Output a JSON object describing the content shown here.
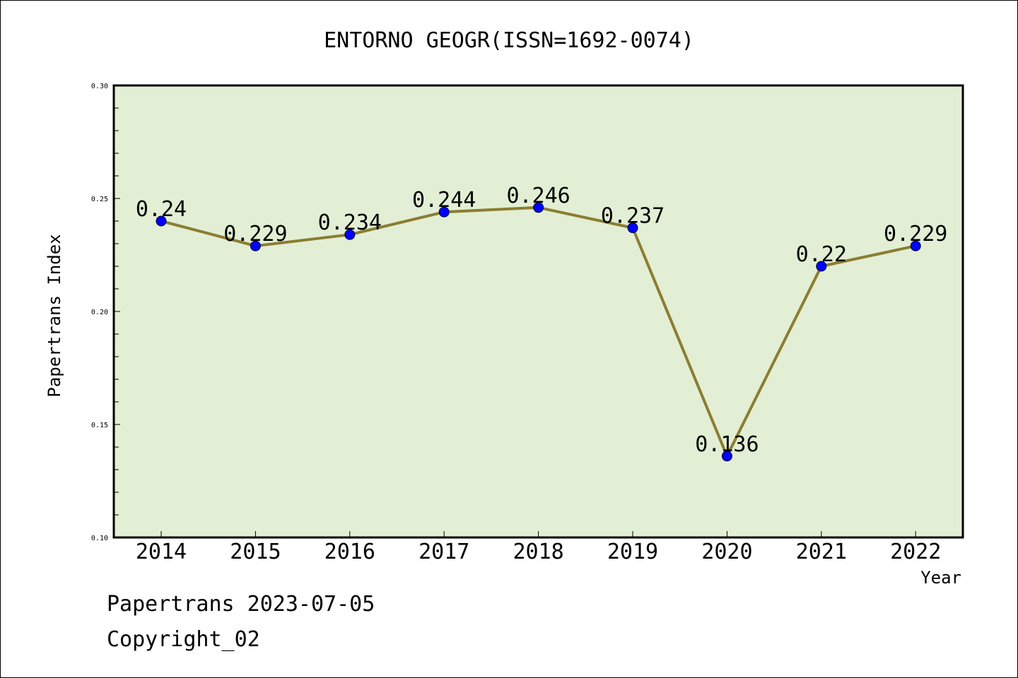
{
  "chart_data": {
    "type": "line",
    "title": "ENTORNO GEOGR(ISSN=1692-0074)",
    "xlabel": "Year",
    "ylabel": "Papertrans Index",
    "categories": [
      "2014",
      "2015",
      "2016",
      "2017",
      "2018",
      "2019",
      "2020",
      "2021",
      "2022"
    ],
    "series": [
      {
        "values": [
          0.24,
          0.229,
          0.234,
          0.244,
          0.246,
          0.237,
          0.136,
          0.22,
          0.229
        ],
        "labels": [
          "0.24",
          "0.229",
          "0.234",
          "0.244",
          "0.246",
          "0.237",
          "0.136",
          "0.22",
          "0.229"
        ]
      }
    ],
    "ylim": [
      0.1,
      0.3
    ],
    "yticks": [
      "0.10",
      "0.15",
      "0.20",
      "0.25",
      "0.30"
    ],
    "grid": false,
    "legend": "none",
    "colors": {
      "plot_background": "#e2efd4",
      "line": "#8b7d33",
      "marker": "#0000ff"
    }
  },
  "footer": {
    "line1": "Papertrans 2023-07-05",
    "line2": "Copyright_02"
  }
}
